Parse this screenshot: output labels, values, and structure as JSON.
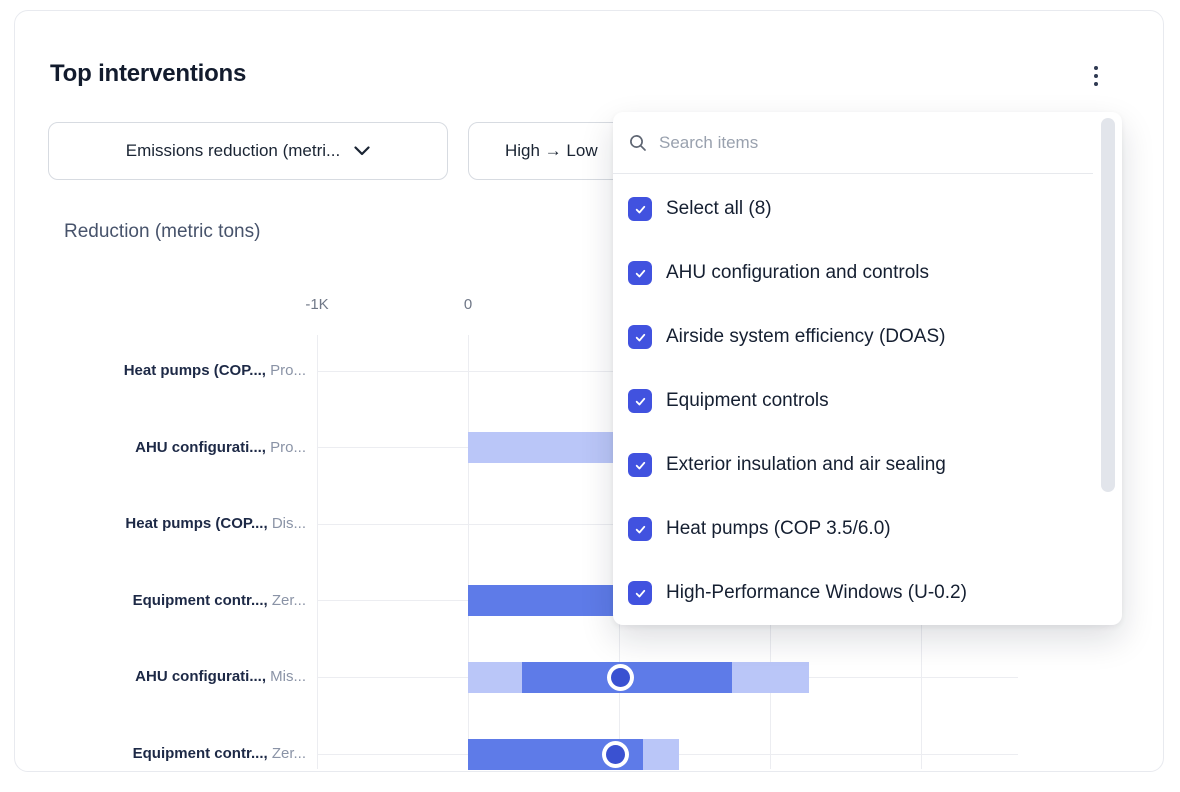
{
  "card": {
    "title": "Top interventions"
  },
  "filters": {
    "metric": {
      "label": "Emissions reduction (metri..."
    },
    "sort": {
      "label": "High → Low"
    }
  },
  "chart_data": {
    "type": "bar",
    "subtype": "horizontal-range-bars-with-markers",
    "axis_title": "Reduction (metric tons)",
    "x_axis": {
      "unit": "metric tons",
      "tick_labels": [
        {
          "value": -1000,
          "label": "-1K"
        },
        {
          "value": 0,
          "label": "0"
        }
      ],
      "gridline_values": [
        -1000,
        0,
        1000,
        2000,
        3000
      ],
      "range": [
        -1000,
        3640
      ],
      "grid": true
    },
    "rows": [
      {
        "label_bold": "Heat pumps (COP...,",
        "label_gray": "Pro...",
        "range": null,
        "inner": null,
        "marker": null,
        "bars_hidden_behind_panel": true
      },
      {
        "label_bold": "AHU configurati...,",
        "label_gray": "Pro...",
        "range": [
          0,
          2900
        ],
        "range_end_hidden": true,
        "inner": null,
        "marker": null
      },
      {
        "label_bold": "Heat pumps (COP...,",
        "label_gray": "Dis...",
        "range": null,
        "inner": null,
        "marker": null,
        "bars_hidden_behind_panel": true
      },
      {
        "label_bold": "Equipment contr...,",
        "label_gray": "Zer...",
        "range": null,
        "inner": [
          0,
          2600
        ],
        "inner_end_hidden": true,
        "marker": null
      },
      {
        "label_bold": "AHU configurati...,",
        "label_gray": "Mis...",
        "range": [
          0,
          2260
        ],
        "inner": [
          360,
          1750
        ],
        "marker": 1010
      },
      {
        "label_bold": "Equipment contr...,",
        "label_gray": "Zer...",
        "range": [
          0,
          1400
        ],
        "inner": [
          0,
          1160
        ],
        "marker": 980
      }
    ]
  },
  "dropdown_panel": {
    "search_placeholder": "Search items",
    "items": [
      {
        "label": "Select all (8)",
        "checked": true
      },
      {
        "label": "AHU configuration and controls",
        "checked": true
      },
      {
        "label": "Airside system efficiency (DOAS)",
        "checked": true
      },
      {
        "label": "Equipment controls",
        "checked": true
      },
      {
        "label": "Exterior insulation and air sealing",
        "checked": true
      },
      {
        "label": "Heat pumps (COP 3.5/6.0)",
        "checked": true
      },
      {
        "label": "High-Performance Windows (U-0.2)",
        "checked": true
      }
    ]
  },
  "colors": {
    "bar_light": "#BAC6F8",
    "bar_dark": "#5E7BE8",
    "marker_fill": "#3A51D1",
    "checkbox_blue": "#4152DF",
    "gridline": "#ECEDF1"
  }
}
